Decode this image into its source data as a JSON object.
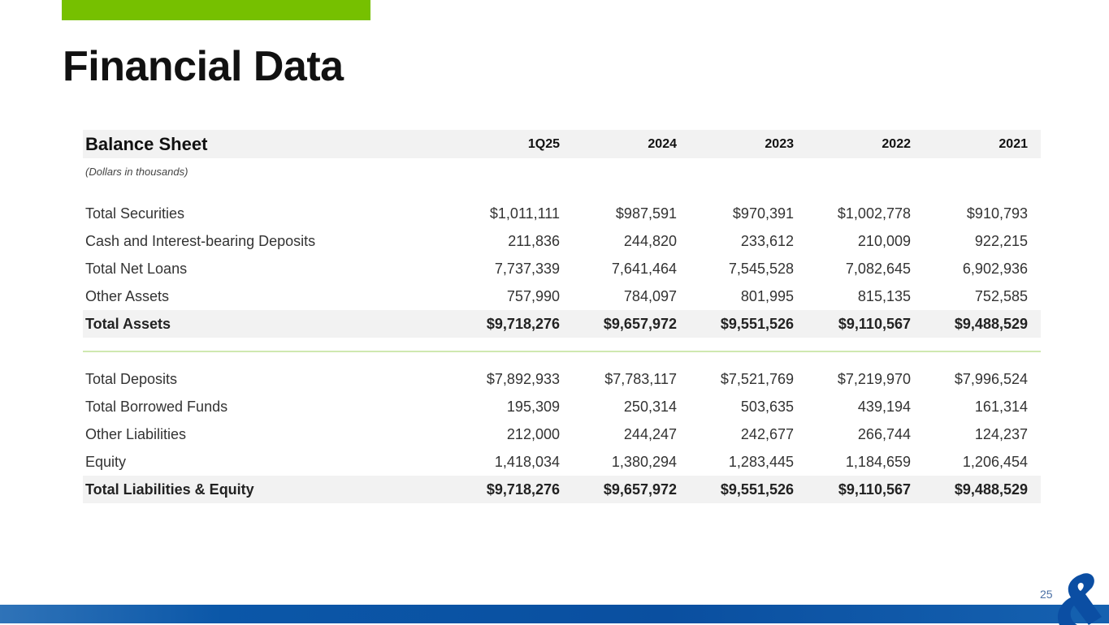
{
  "title": "Financial Data",
  "table": {
    "header": "Balance Sheet",
    "columns": [
      "1Q25",
      "2024",
      "2023",
      "2022",
      "2021"
    ],
    "note": "(Dollars in thousands)",
    "assets": [
      {
        "label": "Total Securities",
        "values": [
          "$1,011,111",
          "$987,591",
          "$970,391",
          "$1,002,778",
          "$910,793"
        ]
      },
      {
        "label": "Cash and Interest-bearing Deposits",
        "values": [
          "211,836",
          "244,820",
          "233,612",
          "210,009",
          "922,215"
        ]
      },
      {
        "label": "Total Net Loans",
        "values": [
          "7,737,339",
          "7,641,464",
          "7,545,528",
          "7,082,645",
          "6,902,936"
        ]
      },
      {
        "label": "Other Assets",
        "values": [
          "757,990",
          "784,097",
          "801,995",
          "815,135",
          "752,585"
        ]
      },
      {
        "label": "Total Assets",
        "values": [
          "$9,718,276",
          "$9,657,972",
          "$9,551,526",
          "$9,110,567",
          "$9,488,529"
        ]
      }
    ],
    "liabilities": [
      {
        "label": "Total Deposits",
        "values": [
          "$7,892,933",
          "$7,783,117",
          "$7,521,769",
          "$7,219,970",
          "$7,996,524"
        ]
      },
      {
        "label": "Total Borrowed Funds",
        "values": [
          "195,309",
          "250,314",
          "503,635",
          "439,194",
          "161,314"
        ]
      },
      {
        "label": "Other Liabilities",
        "values": [
          "212,000",
          "244,247",
          "242,677",
          "266,744",
          "124,237"
        ]
      },
      {
        "label": "Equity",
        "values": [
          "1,418,034",
          "1,380,294",
          "1,283,445",
          "1,184,659",
          "1,206,454"
        ]
      },
      {
        "label": "Total Liabilities & Equity",
        "values": [
          "$9,718,276",
          "$9,657,972",
          "$9,551,526",
          "$9,110,567",
          "$9,488,529"
        ]
      }
    ]
  },
  "page_number": "25",
  "colors": {
    "accent_green": "#76c000",
    "brand_blue": "#0a4fa0"
  }
}
